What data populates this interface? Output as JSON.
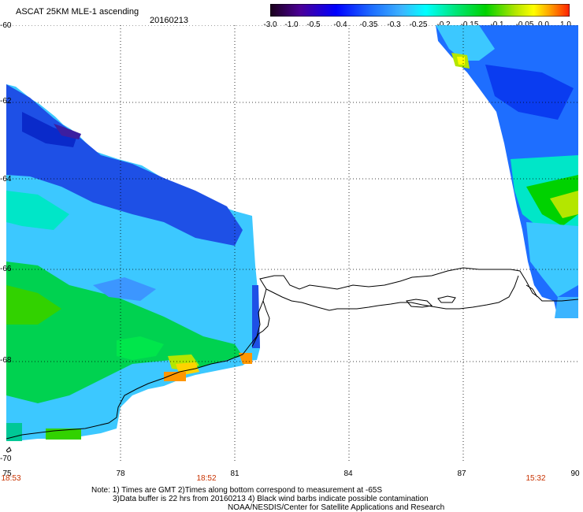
{
  "header": {
    "title": "ASCAT 25KM MLE-1 ascending",
    "date": "20160213"
  },
  "colorbar": {
    "tick_labels": [
      "-3.0",
      "-1.0",
      "-0.5",
      "-0.4",
      "-0.35",
      "-0.3",
      "-0.25",
      "-0.2",
      "-0.15",
      "-0.1",
      "-0.05",
      "0.0",
      "1.0"
    ],
    "colors": [
      "#2a0030",
      "#5a00a0",
      "#0000ff",
      "#1e5aff",
      "#3c96ff",
      "#3cc8ff",
      "#00ffff",
      "#00e68c",
      "#00d200",
      "#a0e600",
      "#ffff00",
      "#ff9600",
      "#ff2800"
    ]
  },
  "axes": {
    "y_labels": [
      "-60",
      "-62",
      "-64",
      "-66",
      "-68",
      "-70"
    ],
    "x_labels": [
      "75",
      "78",
      "81",
      "84",
      "87",
      "90"
    ],
    "x_times": [
      "18:53",
      "18:52",
      "15:32"
    ]
  },
  "notes": {
    "line1": "Note: 1) Times are GMT 2)Times along bottom correspond to measurement at -65S",
    "line2": "3)Data buffer is 22 hrs from 20160213 4) Black wind barbs indicate possible contamination",
    "line3": "NOAA/NESDIS/Center for Satellite Applications and Research"
  }
}
